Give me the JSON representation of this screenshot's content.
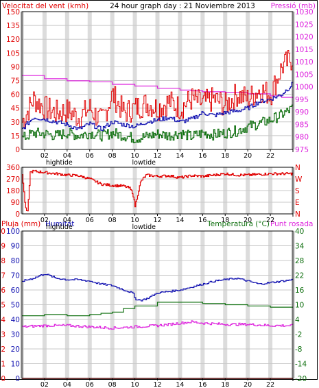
{
  "title": "24 hour graph day : 21 Noviembre 2013",
  "colors": {
    "wind": "#e00000",
    "pressure": "#dd22dd",
    "blue": "#1010b0",
    "green": "#107010",
    "grid": "#c8c8c8",
    "vband": "#dcdcdc"
  },
  "x_axis": {
    "ticks": [
      "02",
      "04",
      "06",
      "08",
      "10",
      "12",
      "14",
      "16",
      "18",
      "20",
      "22"
    ],
    "tide_labels": [
      {
        "text": "hightide",
        "at": 3.3
      },
      {
        "text": "lowtide",
        "at": 10.8
      }
    ]
  },
  "chart_data": [
    {
      "type": "line",
      "name": "wind-pressure",
      "left_label": "Velocitat del vent (kmh)",
      "right_label": "Pressió (mb)",
      "left_ticks": [
        "150",
        "135",
        "120",
        "105",
        "90",
        "75",
        "60",
        "45",
        "30",
        "15",
        "0"
      ],
      "right_ticks": [
        "1030",
        "1025",
        "1020",
        "1015",
        "1010",
        "1005",
        "1000",
        "995",
        "990",
        "985",
        "980",
        "975"
      ],
      "x_range": [
        0,
        24
      ],
      "ylim_left": [
        0,
        150
      ],
      "ylim_right": [
        975,
        1030
      ],
      "series": [
        {
          "key": "pressure",
          "axis": "right",
          "x": [
            0,
            2,
            4,
            6,
            8,
            10,
            12,
            14,
            15,
            16,
            18,
            20,
            22,
            23,
            24
          ],
          "values": [
            1004.5,
            1003.2,
            1002.4,
            1002,
            1001,
            1000.3,
            999.4,
            998.7,
            998.4,
            998,
            997.8,
            997.2,
            996.4,
            995.8,
            995.5
          ]
        },
        {
          "key": "gust",
          "axis": "left",
          "x": [
            0,
            1,
            2,
            3,
            4,
            5,
            6,
            7,
            8,
            9,
            10,
            11,
            12,
            13,
            14,
            15,
            16,
            17,
            18,
            19,
            20,
            21,
            22,
            23,
            24
          ],
          "values": [
            30,
            55,
            45,
            40,
            42,
            35,
            45,
            30,
            60,
            40,
            45,
            50,
            45,
            52,
            45,
            55,
            50,
            55,
            48,
            60,
            55,
            65,
            60,
            90,
            100
          ]
        },
        {
          "key": "avg",
          "axis": "left",
          "x": [
            0,
            1,
            2,
            3,
            4,
            5,
            6,
            7,
            8,
            9,
            10,
            11,
            12,
            13,
            14,
            15,
            16,
            17,
            18,
            19,
            20,
            21,
            22,
            23,
            24
          ],
          "values": [
            22,
            35,
            33,
            30,
            27,
            22,
            28,
            22,
            30,
            27,
            25,
            30,
            32,
            35,
            30,
            33,
            40,
            37,
            40,
            42,
            45,
            52,
            55,
            60,
            72
          ]
        },
        {
          "key": "low",
          "axis": "left",
          "x": [
            0,
            1,
            2,
            3,
            4,
            5,
            6,
            7,
            8,
            9,
            10,
            11,
            12,
            13,
            14,
            15,
            16,
            17,
            18,
            19,
            20,
            21,
            22,
            23,
            24
          ],
          "values": [
            12,
            18,
            17,
            15,
            18,
            15,
            18,
            15,
            18,
            15,
            12,
            14,
            17,
            15,
            18,
            14,
            18,
            16,
            18,
            20,
            25,
            28,
            32,
            38,
            45
          ]
        }
      ]
    },
    {
      "type": "line",
      "name": "wind-direction",
      "left_ticks": [
        "360",
        "270",
        "180",
        "90",
        "0"
      ],
      "right_ticks": [
        "N",
        "W",
        "S",
        "E",
        "N"
      ],
      "x_range": [
        0,
        24
      ],
      "ylim": [
        0,
        360
      ],
      "series": [
        {
          "key": "direction",
          "x": [
            0,
            0.3,
            0.5,
            0.7,
            1,
            2,
            3,
            4,
            5,
            6,
            7,
            8,
            9,
            9.5,
            9.8,
            10,
            10.5,
            11,
            12,
            13,
            14,
            15,
            16,
            17,
            18,
            19,
            20,
            21,
            22,
            23,
            24
          ],
          "values": [
            310,
            40,
            10,
            320,
            330,
            320,
            310,
            300,
            295,
            270,
            230,
            220,
            215,
            200,
            160,
            60,
            250,
            300,
            290,
            295,
            280,
            295,
            290,
            300,
            310,
            300,
            300,
            305,
            310,
            310,
            310
          ]
        }
      ]
    },
    {
      "type": "line",
      "name": "rain-humidity-temperature",
      "left_label": "Pluja (mm)",
      "mid_label": "Humitat",
      "right_label": "Temperatura (°C)",
      "right_label2": "Punt rosada",
      "left_ticks": [
        "10",
        "9",
        "8",
        "7",
        "6",
        "5",
        "4",
        "3",
        "2",
        "1",
        "0"
      ],
      "mid_ticks": [
        "100",
        "90",
        "80",
        "70",
        "60",
        "50",
        "40",
        "30",
        "20",
        "10",
        "0"
      ],
      "right_ticks": [
        "40",
        "34",
        "28",
        "22",
        "16",
        "10",
        "4",
        "-2",
        "-8",
        "-14",
        "-20"
      ],
      "x_range": [
        0,
        24
      ],
      "ylim_left": [
        0,
        10
      ],
      "ylim_mid": [
        0,
        100
      ],
      "ylim_right": [
        -20,
        40
      ],
      "series": [
        {
          "key": "humidity",
          "axis": "mid",
          "x": [
            0,
            1,
            2,
            3,
            4,
            5,
            6,
            7,
            8,
            9,
            9.8,
            10,
            10.5,
            11,
            12,
            13,
            14,
            15,
            16,
            17,
            18,
            19,
            20,
            21,
            22,
            23,
            24
          ],
          "values": [
            66,
            68,
            71,
            68,
            67,
            67,
            66,
            64,
            63,
            60,
            58,
            54,
            53,
            54,
            58,
            59,
            60,
            62,
            64,
            66,
            67,
            68,
            66,
            64,
            65,
            66,
            67
          ]
        },
        {
          "key": "temperature",
          "axis": "right",
          "x": [
            0,
            2,
            4,
            6,
            7,
            8,
            9,
            10,
            12,
            14,
            16,
            18,
            20,
            22,
            24
          ],
          "values": [
            5.5,
            6,
            5.5,
            6,
            6.5,
            7,
            8.5,
            9.5,
            11,
            11,
            10.5,
            10,
            9.5,
            9,
            9
          ]
        },
        {
          "key": "dewpoint",
          "axis": "right",
          "x": [
            0,
            2,
            4,
            6,
            8,
            10,
            12,
            14,
            15,
            16,
            18,
            20,
            22,
            24
          ],
          "values": [
            1,
            1.5,
            1.5,
            1,
            0.5,
            1,
            1.5,
            2.5,
            3,
            2.5,
            2,
            2,
            1.5,
            1.5
          ]
        },
        {
          "key": "rain",
          "axis": "left",
          "x": [
            0,
            24
          ],
          "values": [
            0,
            0
          ]
        }
      ]
    }
  ]
}
